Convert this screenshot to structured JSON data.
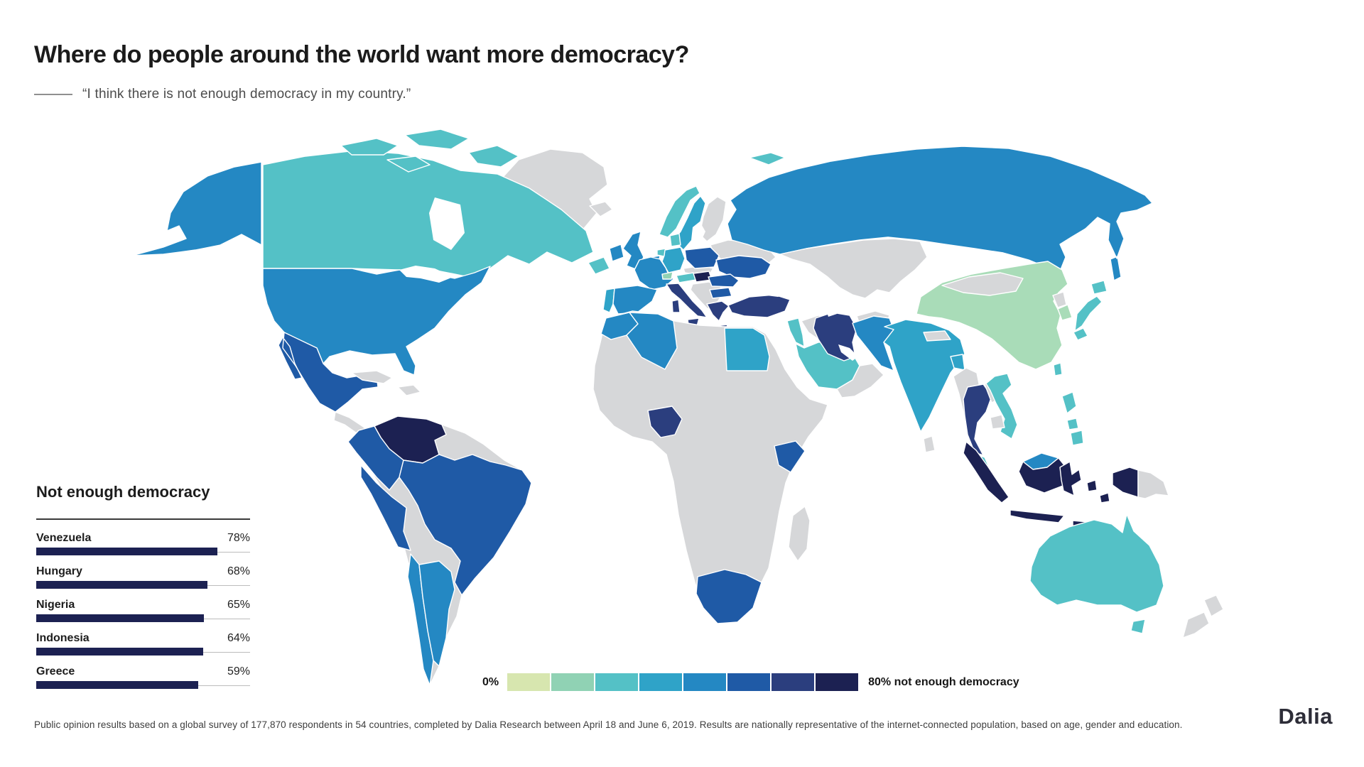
{
  "header": {
    "title": "Where do people around the world want more democracy?",
    "subtitle": "“I think there is not enough democracy in my country.”"
  },
  "panel": {
    "heading": "Not enough democracy"
  },
  "legend": {
    "min_label": "0%",
    "max_label": "80% not enough democracy"
  },
  "footnote": "Public opinion results based on a global survey of 177,870 respondents in 54 countries, completed by Dalia Research between April 18 and June 6, 2019. Results are nationally representative of the internet-connected population, based on age, gender and education.",
  "brand": "Dalia",
  "palette": {
    "classes": [
      "#d7e6af",
      "#90d2b4",
      "#54c1c6",
      "#2fa3c8",
      "#2488c3",
      "#1f5aa6",
      "#2b3e7e",
      "#1c2152"
    ],
    "no_data": "#d6d7d9",
    "china_green": "#a9dcb8",
    "bar_navy": "#1c2152",
    "ocean": "#ffffff"
  },
  "chart_data": {
    "type": "choropleth",
    "title": "Where do people around the world want more democracy?",
    "statement": "I think there is not enough democracy in my country.",
    "legend": {
      "min": "0%",
      "max": "80% not enough democracy",
      "classes": 8,
      "position": "bottom"
    },
    "top_countries": {
      "type": "bar",
      "title": "Not enough democracy",
      "categories": [
        "Venezuela",
        "Hungary",
        "Nigeria",
        "Indonesia",
        "Greece"
      ],
      "values": [
        78,
        68,
        65,
        64,
        59
      ],
      "unit": "%"
    },
    "country_color_class": {
      "canada": 3,
      "united-states": 5,
      "greenland": 0,
      "mexico": 6,
      "central-america": 0,
      "cuba": 0,
      "hispaniola": 0,
      "south-america-other": 0,
      "venezuela": 8,
      "colombia": 6,
      "peru": 6,
      "brazil": 6,
      "chile": 5,
      "argentina": 5,
      "iceland": 0,
      "united-kingdom": 5,
      "ireland": 5,
      "norway": 3,
      "sweden": 4,
      "finland": 0,
      "denmark": 3,
      "netherlands": 3,
      "belgium": 5,
      "germany": 4,
      "france": 5,
      "switzerland": 2,
      "austria": 3,
      "italy": 7,
      "poland": 6,
      "czechia-slovakia": 0,
      "hungary": 8,
      "balkans": 0,
      "baltics-belarus": 0,
      "ukraine": 6,
      "romania": 6,
      "bulgaria": 6,
      "greece": 7,
      "turkey": 7,
      "portugal": 4,
      "spain": 5,
      "russia": 5,
      "kazakhstan-central-asia": 0,
      "morocco": 5,
      "algeria": 5,
      "egypt": 4,
      "africa-other": 0,
      "nigeria": 7,
      "kenya": 6,
      "south-africa": 6,
      "madagascar": 0,
      "levant": 3,
      "saudi-arabia": 3,
      "iraq-syria": 0,
      "yemen-oman": 0,
      "iran": 7,
      "afghanistan": 0,
      "pakistan": 5,
      "india": 4,
      "nepal": 0,
      "bangladesh": 4,
      "sri-lanka": 0,
      "china": "china_green",
      "mongolia": 0,
      "north-korea": 0,
      "south-korea": "china_green",
      "japan": 3,
      "taiwan": 3,
      "myanmar": 0,
      "thailand": 7,
      "laos": 0,
      "cambodia": 0,
      "vietnam": 3,
      "malaysia-peninsular": 3,
      "malaysia-borneo": 5,
      "indonesia": 8,
      "philippines": 3,
      "papua-new-guinea": 0,
      "australia": 3,
      "new-zealand": 0
    }
  }
}
